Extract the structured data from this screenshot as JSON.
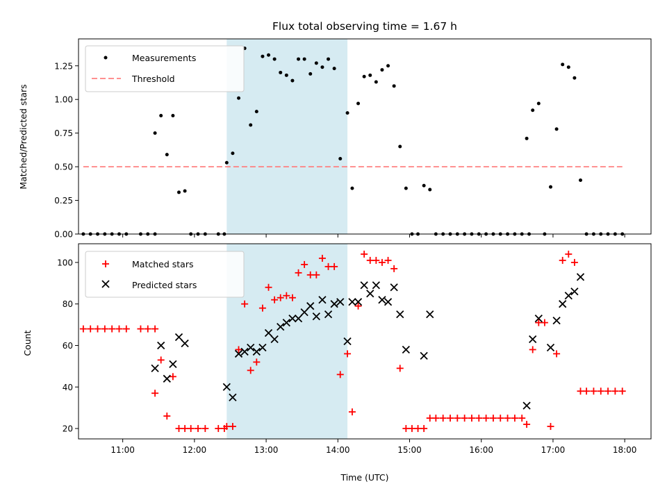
{
  "chart_data": [
    {
      "type": "scatter",
      "title": "Flux total observing time = 1.67 h",
      "xlabel": "",
      "ylabel": "Matched/Predicted stars",
      "xlim": [
        "10:23",
        "18:22"
      ],
      "ylim": [
        0,
        1.45
      ],
      "yticks": [
        "0.00",
        "0.25",
        "0.50",
        "0.75",
        "1.00",
        "1.25"
      ],
      "legend_position": "top-left",
      "shaded_region": {
        "x": [
          "12:27",
          "14:08"
        ],
        "color": "#add8e6"
      },
      "series": [
        {
          "name": "Measurements",
          "marker": "dot",
          "color": "#000000",
          "points": [
            [
              "10:27",
              0
            ],
            [
              "10:33",
              0
            ],
            [
              "10:39",
              0
            ],
            [
              "10:45",
              0
            ],
            [
              "10:51",
              0
            ],
            [
              "10:57",
              0
            ],
            [
              "11:03",
              0
            ],
            [
              "11:15",
              0
            ],
            [
              "11:21",
              0
            ],
            [
              "11:27",
              0
            ],
            [
              "11:27",
              0.75
            ],
            [
              "11:32",
              0.88
            ],
            [
              "11:37",
              0.59
            ],
            [
              "11:42",
              0.88
            ],
            [
              "11:47",
              0.31
            ],
            [
              "11:52",
              0.32
            ],
            [
              "11:57",
              0
            ],
            [
              "12:03",
              0
            ],
            [
              "12:09",
              0
            ],
            [
              "12:20",
              0
            ],
            [
              "12:25",
              0
            ],
            [
              "12:27",
              0.53
            ],
            [
              "12:32",
              0.6
            ],
            [
              "12:37",
              1.01
            ],
            [
              "12:42",
              1.38
            ],
            [
              "12:47",
              0.81
            ],
            [
              "12:52",
              0.91
            ],
            [
              "12:57",
              1.32
            ],
            [
              "13:02",
              1.33
            ],
            [
              "13:07",
              1.3
            ],
            [
              "13:12",
              1.2
            ],
            [
              "13:17",
              1.18
            ],
            [
              "13:22",
              1.14
            ],
            [
              "13:27",
              1.3
            ],
            [
              "13:32",
              1.3
            ],
            [
              "13:37",
              1.19
            ],
            [
              "13:42",
              1.27
            ],
            [
              "13:47",
              1.24
            ],
            [
              "13:52",
              1.3
            ],
            [
              "13:57",
              1.23
            ],
            [
              "14:02",
              0.56
            ],
            [
              "14:08",
              0.9
            ],
            [
              "14:12",
              0.34
            ],
            [
              "14:17",
              0.97
            ],
            [
              "14:22",
              1.17
            ],
            [
              "14:27",
              1.18
            ],
            [
              "14:32",
              1.13
            ],
            [
              "14:37",
              1.22
            ],
            [
              "14:42",
              1.25
            ],
            [
              "14:47",
              1.1
            ],
            [
              "14:52",
              0.65
            ],
            [
              "14:57",
              0.34
            ],
            [
              "15:02",
              0
            ],
            [
              "15:07",
              0
            ],
            [
              "15:12",
              0.36
            ],
            [
              "15:17",
              0.33
            ],
            [
              "15:22",
              0
            ],
            [
              "15:28",
              0
            ],
            [
              "15:34",
              0
            ],
            [
              "15:40",
              0
            ],
            [
              "15:46",
              0
            ],
            [
              "15:52",
              0
            ],
            [
              "15:58",
              0
            ],
            [
              "16:04",
              0
            ],
            [
              "16:10",
              0
            ],
            [
              "16:16",
              0
            ],
            [
              "16:22",
              0
            ],
            [
              "16:28",
              0
            ],
            [
              "16:34",
              0
            ],
            [
              "16:40",
              0
            ],
            [
              "16:38",
              0.71
            ],
            [
              "16:43",
              0.92
            ],
            [
              "16:48",
              0.97
            ],
            [
              "16:53",
              0
            ],
            [
              "16:58",
              0.35
            ],
            [
              "17:03",
              0.78
            ],
            [
              "17:08",
              1.26
            ],
            [
              "17:13",
              1.24
            ],
            [
              "17:18",
              1.16
            ],
            [
              "17:23",
              0.4
            ],
            [
              "17:28",
              0
            ],
            [
              "17:34",
              0
            ],
            [
              "17:40",
              0
            ],
            [
              "17:46",
              0
            ],
            [
              "17:52",
              0
            ],
            [
              "17:58",
              0
            ]
          ]
        },
        {
          "name": "Threshold",
          "marker": "dashed-line",
          "color": "#ff8080",
          "points": [
            [
              "10:27",
              0.5
            ],
            [
              "17:58",
              0.5
            ]
          ]
        }
      ]
    },
    {
      "type": "scatter",
      "title": "",
      "xlabel": "Time (UTC)",
      "ylabel": "Count",
      "xlim": [
        "10:23",
        "18:22"
      ],
      "ylim": [
        15,
        109
      ],
      "xticks": [
        "11:00",
        "12:00",
        "13:00",
        "14:00",
        "15:00",
        "16:00",
        "17:00",
        "18:00"
      ],
      "yticks": [
        "20",
        "40",
        "60",
        "80",
        "100"
      ],
      "legend_position": "top-left",
      "shaded_region": {
        "x": [
          "12:27",
          "14:08"
        ],
        "color": "#add8e6"
      },
      "series": [
        {
          "name": "Matched stars",
          "marker": "plus",
          "color": "#ff0000",
          "points": [
            [
              "10:27",
              68
            ],
            [
              "10:33",
              68
            ],
            [
              "10:39",
              68
            ],
            [
              "10:45",
              68
            ],
            [
              "10:51",
              68
            ],
            [
              "10:57",
              68
            ],
            [
              "11:03",
              68
            ],
            [
              "11:15",
              68
            ],
            [
              "11:21",
              68
            ],
            [
              "11:27",
              68
            ],
            [
              "11:27",
              37
            ],
            [
              "11:32",
              53
            ],
            [
              "11:37",
              26
            ],
            [
              "11:42",
              45
            ],
            [
              "11:47",
              20
            ],
            [
              "11:52",
              20
            ],
            [
              "11:57",
              20
            ],
            [
              "12:03",
              20
            ],
            [
              "12:09",
              20
            ],
            [
              "12:20",
              20
            ],
            [
              "12:25",
              20
            ],
            [
              "12:27",
              21
            ],
            [
              "12:32",
              21
            ],
            [
              "12:37",
              58
            ],
            [
              "12:42",
              80
            ],
            [
              "12:47",
              48
            ],
            [
              "12:52",
              52
            ],
            [
              "12:57",
              78
            ],
            [
              "13:02",
              88
            ],
            [
              "13:07",
              82
            ],
            [
              "13:12",
              83
            ],
            [
              "13:17",
              84
            ],
            [
              "13:22",
              83
            ],
            [
              "13:27",
              95
            ],
            [
              "13:32",
              99
            ],
            [
              "13:37",
              94
            ],
            [
              "13:42",
              94
            ],
            [
              "13:47",
              102
            ],
            [
              "13:52",
              98
            ],
            [
              "13:57",
              98
            ],
            [
              "14:02",
              46
            ],
            [
              "14:08",
              56
            ],
            [
              "14:12",
              28
            ],
            [
              "14:17",
              79
            ],
            [
              "14:22",
              104
            ],
            [
              "14:27",
              101
            ],
            [
              "14:32",
              101
            ],
            [
              "14:37",
              100
            ],
            [
              "14:42",
              101
            ],
            [
              "14:47",
              97
            ],
            [
              "14:52",
              49
            ],
            [
              "14:57",
              20
            ],
            [
              "15:02",
              20
            ],
            [
              "15:07",
              20
            ],
            [
              "15:12",
              20
            ],
            [
              "15:17",
              25
            ],
            [
              "15:22",
              25
            ],
            [
              "15:28",
              25
            ],
            [
              "15:34",
              25
            ],
            [
              "15:40",
              25
            ],
            [
              "15:46",
              25
            ],
            [
              "15:52",
              25
            ],
            [
              "15:58",
              25
            ],
            [
              "16:04",
              25
            ],
            [
              "16:10",
              25
            ],
            [
              "16:16",
              25
            ],
            [
              "16:22",
              25
            ],
            [
              "16:28",
              25
            ],
            [
              "16:34",
              25
            ],
            [
              "16:38",
              22
            ],
            [
              "16:43",
              58
            ],
            [
              "16:48",
              71
            ],
            [
              "16:53",
              71
            ],
            [
              "16:58",
              21
            ],
            [
              "17:03",
              56
            ],
            [
              "17:08",
              101
            ],
            [
              "17:13",
              104
            ],
            [
              "17:18",
              100
            ],
            [
              "17:23",
              38
            ],
            [
              "17:28",
              38
            ],
            [
              "17:34",
              38
            ],
            [
              "17:40",
              38
            ],
            [
              "17:46",
              38
            ],
            [
              "17:52",
              38
            ],
            [
              "17:58",
              38
            ]
          ]
        },
        {
          "name": "Predicted stars",
          "marker": "x",
          "color": "#000000",
          "points": [
            [
              "11:27",
              49
            ],
            [
              "11:32",
              60
            ],
            [
              "11:37",
              44
            ],
            [
              "11:42",
              51
            ],
            [
              "11:47",
              64
            ],
            [
              "11:52",
              61
            ],
            [
              "12:27",
              40
            ],
            [
              "12:32",
              35
            ],
            [
              "12:37",
              56
            ],
            [
              "12:42",
              57
            ],
            [
              "12:47",
              59
            ],
            [
              "12:52",
              57
            ],
            [
              "12:57",
              59
            ],
            [
              "13:02",
              66
            ],
            [
              "13:07",
              63
            ],
            [
              "13:12",
              69
            ],
            [
              "13:17",
              71
            ],
            [
              "13:22",
              73
            ],
            [
              "13:27",
              73
            ],
            [
              "13:32",
              76
            ],
            [
              "13:37",
              79
            ],
            [
              "13:42",
              74
            ],
            [
              "13:47",
              82
            ],
            [
              "13:52",
              75
            ],
            [
              "13:57",
              80
            ],
            [
              "14:02",
              81
            ],
            [
              "14:08",
              62
            ],
            [
              "14:12",
              81
            ],
            [
              "14:17",
              81
            ],
            [
              "14:22",
              89
            ],
            [
              "14:27",
              85
            ],
            [
              "14:32",
              89
            ],
            [
              "14:37",
              82
            ],
            [
              "14:42",
              81
            ],
            [
              "14:47",
              88
            ],
            [
              "14:52",
              75
            ],
            [
              "14:57",
              58
            ],
            [
              "15:12",
              55
            ],
            [
              "15:17",
              75
            ],
            [
              "16:38",
              31
            ],
            [
              "16:43",
              63
            ],
            [
              "16:48",
              73
            ],
            [
              "16:58",
              59
            ],
            [
              "17:03",
              72
            ],
            [
              "17:08",
              80
            ],
            [
              "17:13",
              84
            ],
            [
              "17:18",
              86
            ],
            [
              "17:23",
              93
            ]
          ]
        }
      ]
    }
  ]
}
